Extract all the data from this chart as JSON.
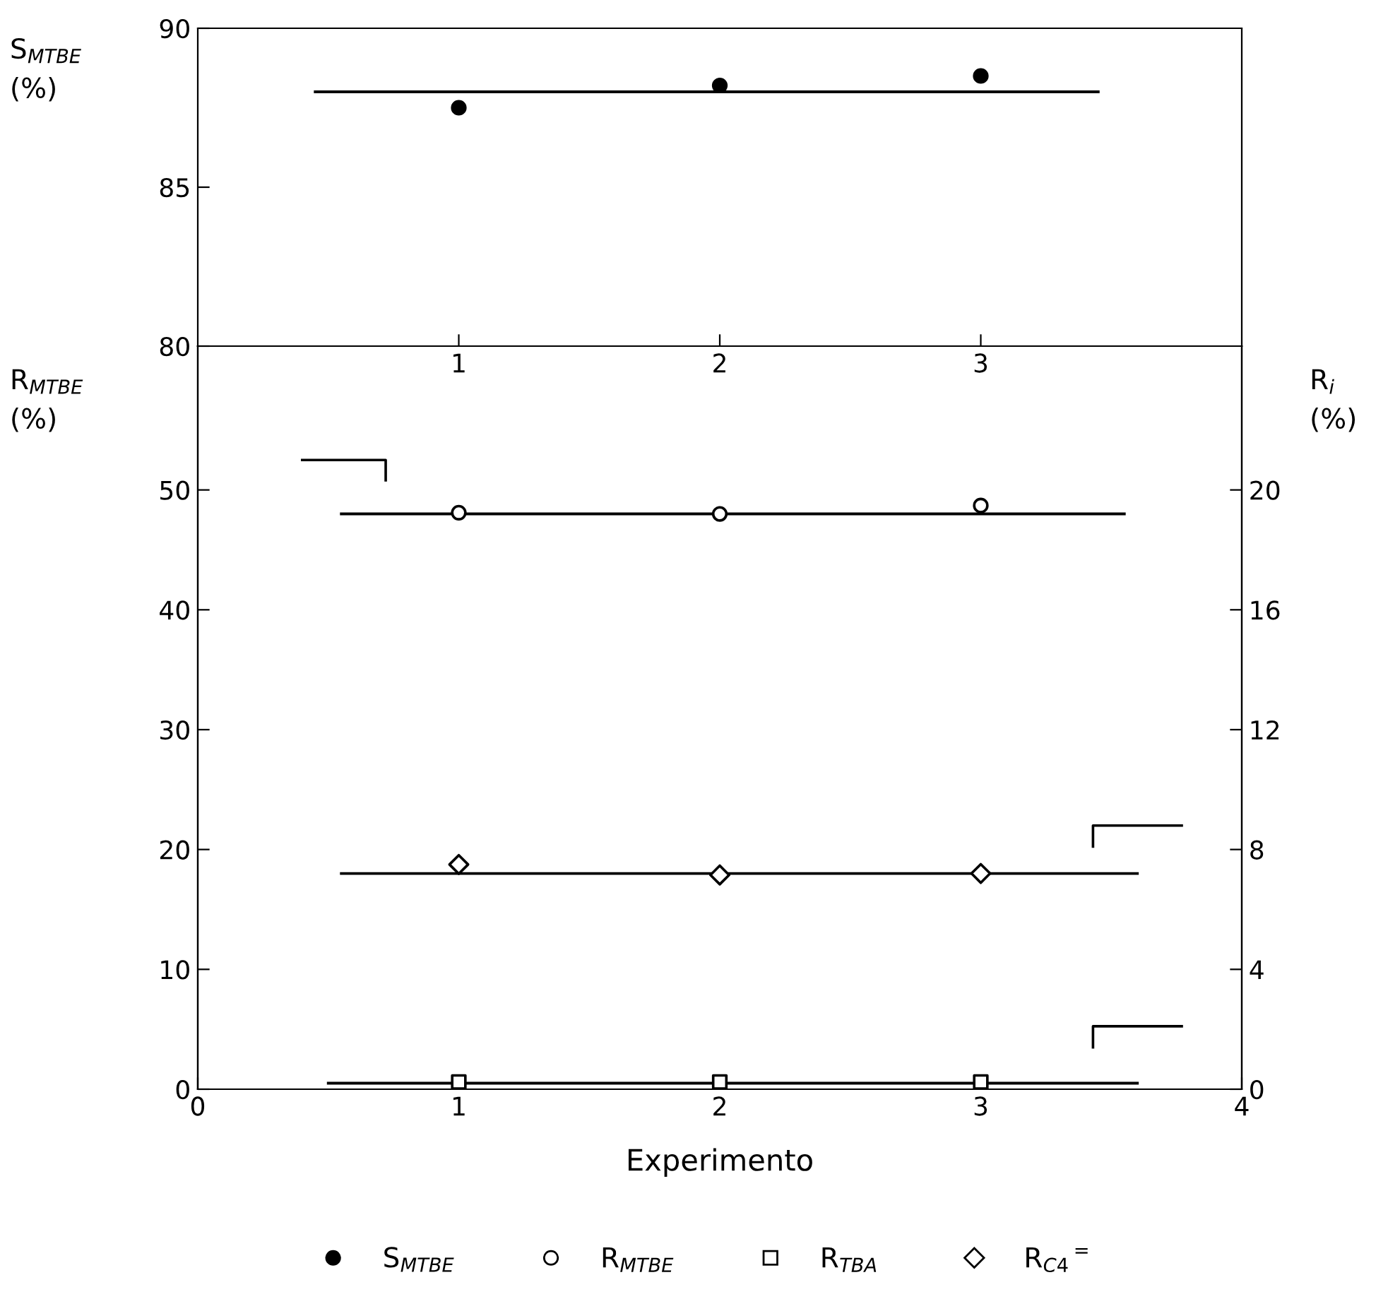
{
  "chart_data": [
    {
      "type": "scatter",
      "ylabel": "S$_{MTBE}$\n(%)",
      "xlim": [
        0,
        4
      ],
      "xticks": [
        1,
        2,
        3
      ],
      "ylim": [
        80,
        90
      ],
      "yticks": [
        80,
        85,
        90
      ],
      "grid": false,
      "legend": "bottom",
      "series": [
        {
          "name": "S$_{MTBE}$",
          "color": "#000000",
          "marker": "circle",
          "x": [
            1,
            2,
            3
          ],
          "values": [
            87.5,
            88.2,
            88.5
          ]
        },
        {
          "type": "line",
          "color": "#000000",
          "line_style": "solid",
          "marker": "none",
          "x": [
            0.45,
            3.45
          ],
          "values": [
            88.0,
            88.0
          ]
        }
      ]
    },
    {
      "type": "scatter",
      "xlabel": "Experimento",
      "ylabel": "R$_{MTBE}$\n(%)",
      "y2label": "R$_{i}$\n(%)",
      "xlim": [
        0,
        4
      ],
      "xticks": [
        0,
        1,
        2,
        3,
        4
      ],
      "ylim": [
        0,
        62
      ],
      "yticks": [
        0,
        10,
        20,
        30,
        40,
        50
      ],
      "y2lim": [
        0,
        24.8
      ],
      "y2ticks": [
        0,
        4,
        8,
        12,
        16,
        20
      ],
      "grid": false,
      "legend": "bottom",
      "series": [
        {
          "name": "R$_{MTBE}$",
          "color": "#000000",
          "marker": "circle",
          "x": [
            1,
            2,
            3
          ],
          "values": [
            48.1,
            48.0,
            48.7
          ]
        },
        {
          "name": "R$_{TBA}$",
          "color": "#000000",
          "marker": "square",
          "axis": "y2",
          "x": [
            1,
            2,
            3
          ],
          "values": [
            0.24,
            0.24,
            0.24
          ]
        },
        {
          "name": "R$_{C4}$$^{=}$",
          "color": "#000000",
          "marker": "diamond",
          "axis": "y2",
          "x": [
            1,
            2,
            3
          ],
          "values": [
            7.5,
            7.15,
            7.2
          ]
        },
        {
          "type": "line",
          "color": "#000000",
          "line_style": "solid",
          "marker": "none",
          "x": [
            0.55,
            3.55
          ],
          "values": [
            48.0,
            48.0
          ]
        },
        {
          "type": "line",
          "color": "#000000",
          "line_style": "solid",
          "marker": "none",
          "axis": "y2",
          "x": [
            0.55,
            3.6
          ],
          "values": [
            7.2,
            7.2
          ]
        },
        {
          "type": "line",
          "color": "#000000",
          "line_style": "solid",
          "marker": "none",
          "axis": "y2",
          "x": [
            0.5,
            3.6
          ],
          "values": [
            0.2,
            0.2
          ]
        }
      ]
    }
  ]
}
